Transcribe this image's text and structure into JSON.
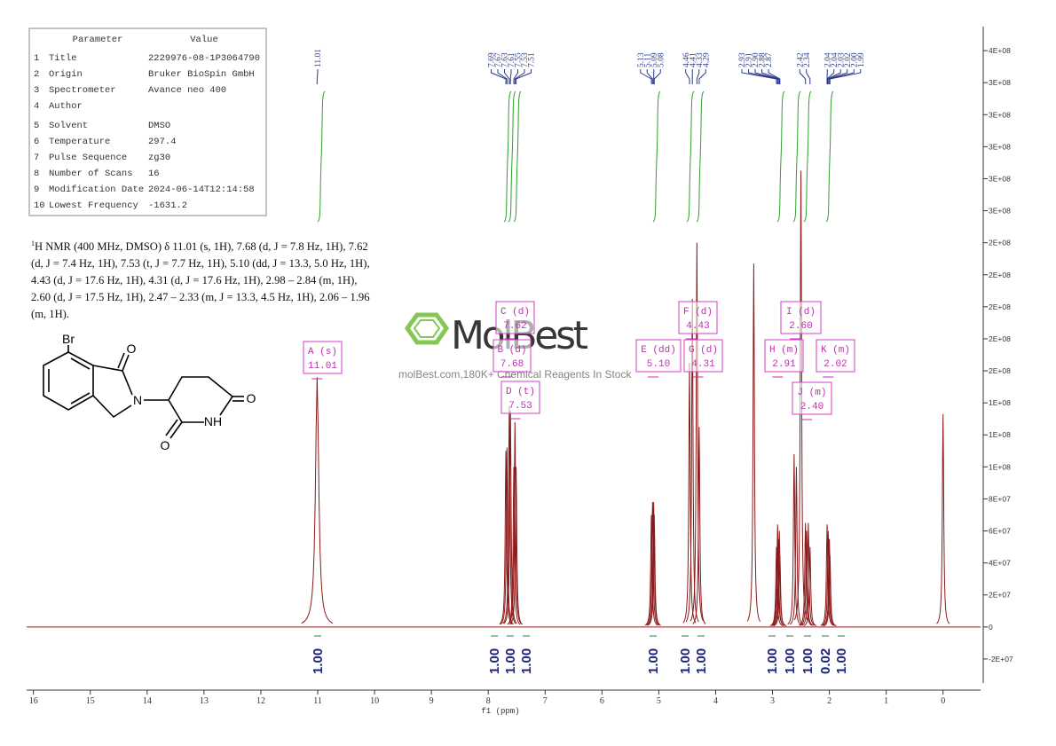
{
  "parameters": {
    "header": [
      "Parameter",
      "Value"
    ],
    "rows": [
      [
        "1",
        "Title",
        "2229976-08-1P3064790"
      ],
      [
        "2",
        "Origin",
        "Bruker BioSpin GmbH"
      ],
      [
        "3",
        "Spectrometer",
        "Avance neo 400"
      ],
      [
        "4",
        "Author"
      ],
      [
        "5",
        "Solvent",
        "DMSO"
      ],
      [
        "6",
        "Temperature",
        "297.4"
      ],
      [
        "7",
        "Pulse Sequence",
        "zg30"
      ],
      [
        "8",
        "Number of Scans",
        "16"
      ],
      [
        "9",
        "Modification Date",
        "2024-06-14T12:14:58"
      ],
      [
        "10",
        "Lowest Frequency",
        "-1631.2"
      ]
    ]
  },
  "description": {
    "sup": "1",
    "text": "H NMR (400 MHz, DMSO) δ 11.01 (s, 1H), 7.68 (d, J = 7.8 Hz, 1H), 7.62 (d, J = 7.4 Hz, 1H), 7.53 (t, J = 7.7 Hz, 1H), 5.10 (dd, J = 13.3, 5.0 Hz, 1H), 4.43 (d, J = 17.6 Hz, 1H), 4.31 (d, J = 17.6 Hz, 1H), 2.98 – 2.84 (m, 1H), 2.60 (d, J = 17.5 Hz, 1H), 2.47 – 2.33 (m, J = 13.3, 4.5 Hz, 1H), 2.06 – 1.96 (m, 1H)."
  },
  "molecule": {
    "atoms": [
      "Br",
      "O",
      "N",
      "O",
      "NH",
      "O"
    ]
  },
  "watermark": {
    "logo": "MolBest",
    "tagline": "molBest.com,180K+ Chemical Reagents In Stock"
  },
  "peak_labels": [
    [
      "11.01"
    ],
    [
      "7.69",
      "7.67",
      "7.63",
      "7.61",
      "7.55",
      "7.53",
      "7.51"
    ],
    [
      "5.13",
      "5.11",
      "5.09",
      "5.08"
    ],
    [
      "4.46",
      "4.41",
      "4.33",
      "4.29"
    ],
    [
      "2.93",
      "2.91",
      "2.90",
      "2.88",
      "2.87"
    ],
    [
      "2.42",
      "2.34"
    ],
    [
      "2.04",
      "2.04",
      "2.03",
      "2.02",
      "2.00",
      "1.99"
    ]
  ],
  "multiplets": [
    {
      "label": "A (s)",
      "shift": "11.01"
    },
    {
      "label": "B (d)",
      "shift": "7.68"
    },
    {
      "label": "C (d)",
      "shift": "7.62"
    },
    {
      "label": "D (t)",
      "shift": "7.53"
    },
    {
      "label": "E (dd)",
      "shift": "5.10"
    },
    {
      "label": "F (d)",
      "shift": "4.43"
    },
    {
      "label": "G (d)",
      "shift": "4.31"
    },
    {
      "label": "H (m)",
      "shift": "2.91"
    },
    {
      "label": "I (d)",
      "shift": "2.60"
    },
    {
      "label": "J (m)",
      "shift": "2.40"
    },
    {
      "label": "K (m)",
      "shift": "2.02"
    }
  ],
  "integrals": [
    "1.00",
    "1.00",
    "1.00",
    "1.00",
    "1.00",
    "1.00",
    "1.00",
    "1.00",
    "1.00",
    "1.00",
    "0.02",
    "1.00"
  ],
  "spectrum": {
    "xlabel": "f1 (ppm)",
    "color": "#8b1a1a",
    "xlim": [
      16.12,
      -0.66
    ],
    "ylim": [
      -35000000,
      375000000
    ],
    "xticks": [
      16,
      15,
      14,
      13,
      12,
      11,
      10,
      9,
      8,
      7,
      6,
      5,
      4,
      3,
      2,
      1,
      0
    ],
    "yticks": [
      {
        "value": 360000000,
        "label": "4E+08"
      },
      {
        "value": 340000000,
        "label": "3E+08"
      },
      {
        "value": 320000000,
        "label": "3E+08"
      },
      {
        "value": 300000000,
        "label": "3E+08"
      },
      {
        "value": 280000000,
        "label": "3E+08"
      },
      {
        "value": 260000000,
        "label": "3E+08"
      },
      {
        "value": 240000000,
        "label": "2E+08"
      },
      {
        "value": 220000000,
        "label": "2E+08"
      },
      {
        "value": 200000000,
        "label": "2E+08"
      },
      {
        "value": 180000000,
        "label": "2E+08"
      },
      {
        "value": 160000000,
        "label": "2E+08"
      },
      {
        "value": 140000000,
        "label": "1E+08"
      },
      {
        "value": 120000000,
        "label": "1E+08"
      },
      {
        "value": 100000000,
        "label": "1E+08"
      },
      {
        "value": 80000000,
        "label": "8E+07"
      },
      {
        "value": 60000000,
        "label": "6E+07"
      },
      {
        "value": 40000000,
        "label": "4E+07"
      },
      {
        "value": 20000000,
        "label": "2E+07"
      },
      0,
      {
        "value": -20000000,
        "label": "-2E+07"
      }
    ],
    "peaks": {
      "ppm": [
        11.01,
        7.69,
        7.67,
        7.63,
        7.61,
        7.55,
        7.53,
        7.51,
        5.13,
        5.11,
        5.09,
        5.08,
        4.46,
        4.41,
        4.33,
        4.29,
        3.33,
        2.93,
        2.91,
        2.9,
        2.88,
        2.87,
        2.62,
        2.58,
        2.5,
        2.42,
        2.4,
        2.37,
        2.34,
        2.04,
        2.02,
        2.0,
        1.99,
        0.0
      ],
      "intensity": [
        156000000,
        110000000,
        112000000,
        138000000,
        135000000,
        100000000,
        128000000,
        100000000,
        70000000,
        78000000,
        78000000,
        70000000,
        165000000,
        205000000,
        240000000,
        125000000,
        227000000,
        50000000,
        64000000,
        55000000,
        60000000,
        45000000,
        108000000,
        100000000,
        285000000,
        65000000,
        60000000,
        65000000,
        50000000,
        64000000,
        60000000,
        55000000,
        45000000,
        133000000
      ]
    }
  }
}
